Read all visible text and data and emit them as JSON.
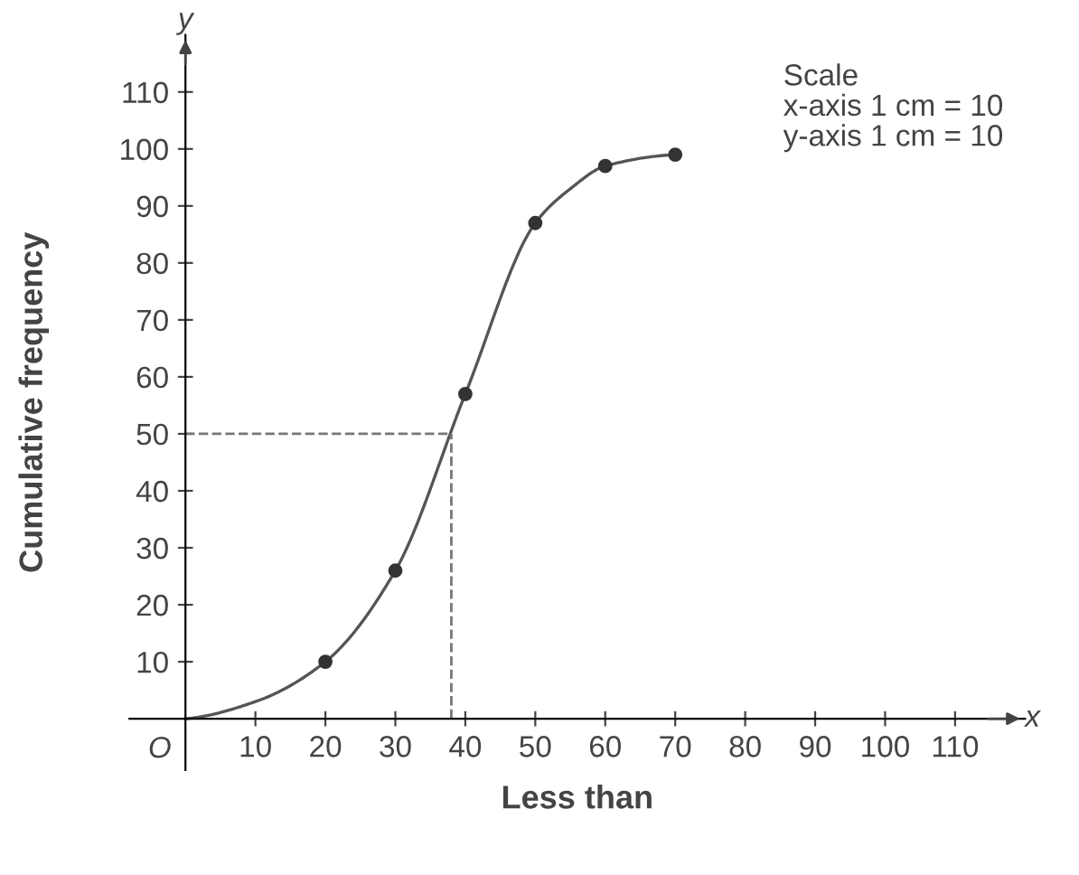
{
  "chart_data": {
    "type": "line",
    "xlabel": "Less than",
    "ylabel": "Cumulative frequency",
    "xlim": [
      -8,
      120
    ],
    "ylim": [
      -9,
      120
    ],
    "xticks": [
      10,
      20,
      30,
      40,
      50,
      60,
      70,
      80,
      90,
      100,
      110
    ],
    "yticks": [
      10,
      20,
      30,
      40,
      50,
      60,
      70,
      80,
      90,
      100,
      110
    ],
    "series": [
      {
        "x": [
          0,
          10,
          20,
          30,
          40,
          50,
          55,
          60,
          70
        ],
        "values": [
          0,
          3,
          10,
          26,
          57,
          87,
          93,
          97,
          99
        ],
        "color": "#555555",
        "marker": "none"
      },
      {
        "type": "scatter",
        "x": [
          20,
          30,
          40,
          50,
          60,
          70
        ],
        "values": [
          10,
          26,
          57,
          87,
          97,
          99
        ],
        "color": "#333333",
        "marker": "circle"
      }
    ],
    "ref_lines": [
      {
        "axis": "y",
        "value": 50,
        "color": "#777777",
        "line_style": "dashed"
      },
      {
        "axis": "x",
        "value": 38,
        "color": "#777777",
        "line_style": "dashed"
      }
    ],
    "annotations": [
      "O",
      "x",
      "y",
      "Scale\nx-axis 1 cm = 10\ny-axis 1 cm = 10"
    ],
    "grid": false,
    "legend": false
  }
}
